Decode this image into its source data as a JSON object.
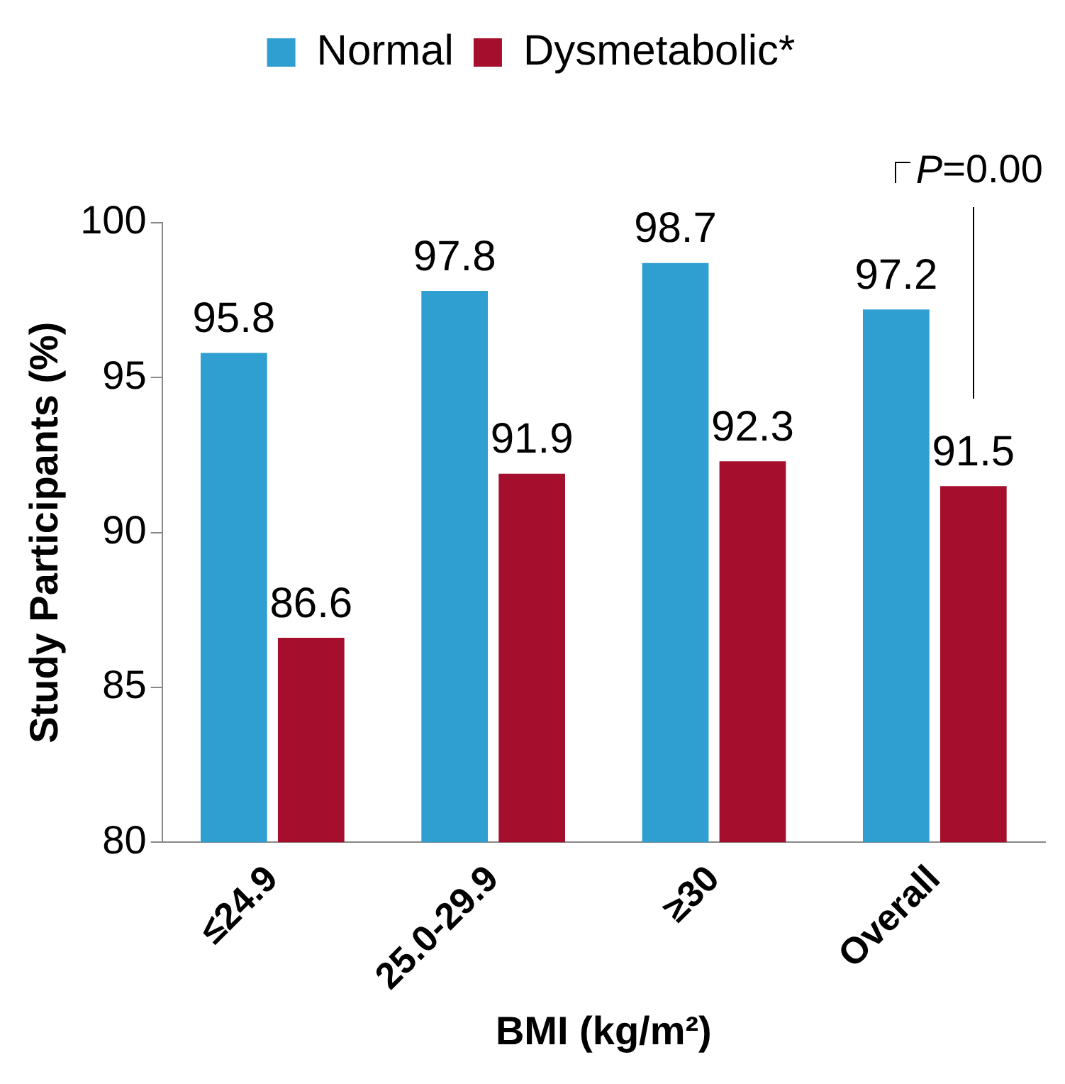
{
  "chart_data": {
    "type": "bar",
    "categories": [
      "≤24.9",
      "25.0-29.9",
      "≥30",
      "Overall"
    ],
    "series": [
      {
        "name": "Normal",
        "color": "#2f9ed0",
        "values": [
          95.8,
          97.8,
          98.7,
          97.2
        ]
      },
      {
        "name": "Dysmetabolic*",
        "color": "#a50f2d",
        "values": [
          86.6,
          91.9,
          92.3,
          91.5
        ]
      }
    ],
    "xlabel": "BMI (kg/m²)",
    "ylabel": "Study Participants (%)",
    "ylim": [
      80,
      100
    ],
    "yticks": [
      80,
      85,
      90,
      95,
      100
    ],
    "grid": false,
    "legend": "top",
    "data_labels": true,
    "annotations": [
      "P=0.00"
    ]
  }
}
